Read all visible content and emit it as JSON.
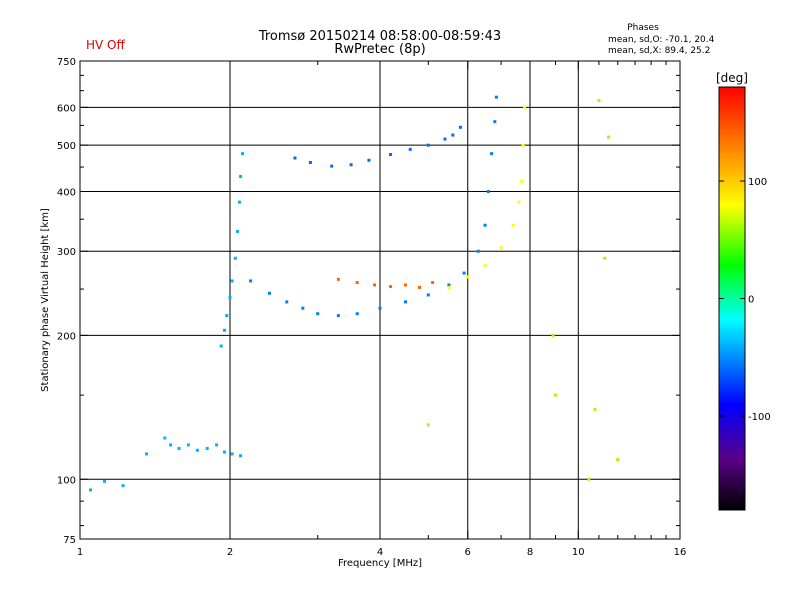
{
  "header": {
    "hv_status": "HV Off",
    "title_line1": "Tromsø 20150214 08:58:00-08:59:43",
    "title_line2": "RwPretec (8p)",
    "stats_title": "Phases",
    "stats_o": "mean, sd,O: -70.1, 20.4",
    "stats_x": "mean, sd,X:  89.4, 25.2"
  },
  "chart_data": {
    "type": "scatter",
    "title": "Tromsø 20150214 08:58:00-08:59:43",
    "subtitle": "RwPretec (8p)",
    "xlabel": "Frequency [MHz]",
    "ylabel": "Stationary phase Virtual Height [km]",
    "xscale": "log",
    "yscale": "log",
    "xlim": [
      1,
      16
    ],
    "ylim": [
      75,
      750
    ],
    "x_ticks": [
      1,
      2,
      4,
      6,
      8,
      10,
      16
    ],
    "x_minor_ticks": [
      3,
      5,
      7,
      9,
      11,
      12,
      13,
      14,
      15
    ],
    "y_ticks": [
      75,
      100,
      200,
      300,
      400,
      500,
      600,
      750
    ],
    "y_minor_ticks": [
      80,
      90,
      150,
      250,
      350,
      450,
      550,
      650,
      700
    ],
    "x_grid": [
      2,
      4,
      6,
      8,
      10
    ],
    "y_grid": [
      100,
      200,
      300,
      400,
      500,
      600
    ],
    "colorbar": {
      "label": "[deg]",
      "range": [
        -180,
        180
      ],
      "ticks": [
        100,
        0,
        -100
      ],
      "colors": [
        "#000000",
        "#5a0088",
        "#0000ff",
        "#00ffff",
        "#00ff00",
        "#ffff00",
        "#ff8000",
        "#ff0000"
      ]
    },
    "series": [
      {
        "name": "low E-layer echoes",
        "phase": -40,
        "points": [
          [
            1.05,
            95
          ],
          [
            1.12,
            99
          ],
          [
            1.22,
            97
          ],
          [
            1.36,
            113
          ],
          [
            1.48,
            122
          ],
          [
            1.52,
            118
          ],
          [
            1.58,
            116
          ],
          [
            1.65,
            118
          ],
          [
            1.72,
            115
          ],
          [
            1.8,
            116
          ],
          [
            1.88,
            118
          ],
          [
            1.95,
            114
          ],
          [
            2.02,
            113
          ],
          [
            2.1,
            112
          ]
        ]
      },
      {
        "name": "F-region vertical trace near 2 MHz",
        "phase": -40,
        "points": [
          [
            1.92,
            190
          ],
          [
            1.95,
            205
          ],
          [
            1.97,
            220
          ],
          [
            2.0,
            240
          ],
          [
            2.02,
            260
          ],
          [
            2.05,
            290
          ],
          [
            2.07,
            330
          ],
          [
            2.09,
            380
          ],
          [
            2.1,
            430
          ],
          [
            2.12,
            480
          ]
        ]
      },
      {
        "name": "O-mode F trace",
        "phase": -55,
        "points": [
          [
            2.2,
            260
          ],
          [
            2.4,
            245
          ],
          [
            2.6,
            235
          ],
          [
            2.8,
            228
          ],
          [
            3.0,
            222
          ],
          [
            3.3,
            220
          ],
          [
            3.6,
            222
          ],
          [
            4.0,
            228
          ],
          [
            4.5,
            235
          ],
          [
            5.0,
            243
          ],
          [
            5.5,
            255
          ],
          [
            5.9,
            270
          ],
          [
            6.3,
            300
          ],
          [
            6.5,
            340
          ],
          [
            6.6,
            400
          ],
          [
            6.7,
            480
          ],
          [
            6.8,
            560
          ],
          [
            6.85,
            630
          ]
        ]
      },
      {
        "name": "X-mode F trace",
        "phase": 80,
        "points": [
          [
            5.5,
            252
          ],
          [
            6.0,
            265
          ],
          [
            6.5,
            280
          ],
          [
            7.0,
            305
          ],
          [
            7.4,
            340
          ],
          [
            7.6,
            380
          ],
          [
            7.7,
            420
          ],
          [
            7.75,
            500
          ],
          [
            7.8,
            600
          ]
        ]
      },
      {
        "name": "orange band",
        "phase": 140,
        "points": [
          [
            3.3,
            262
          ],
          [
            3.6,
            258
          ],
          [
            3.9,
            255
          ],
          [
            4.2,
            253
          ],
          [
            4.5,
            255
          ],
          [
            4.8,
            252
          ],
          [
            5.1,
            258
          ]
        ]
      },
      {
        "name": "upper echo trace",
        "phase": -60,
        "points": [
          [
            2.7,
            470
          ],
          [
            2.9,
            460
          ],
          [
            3.2,
            452
          ],
          [
            3.5,
            455
          ],
          [
            3.8,
            465
          ],
          [
            4.2,
            478
          ],
          [
            4.6,
            490
          ],
          [
            5.0,
            500
          ],
          [
            5.4,
            515
          ],
          [
            5.6,
            525
          ],
          [
            5.8,
            545
          ]
        ]
      },
      {
        "name": "scattered points",
        "phase": 60,
        "points": [
          [
            5.0,
            130
          ],
          [
            8.9,
            200
          ],
          [
            9.0,
            150
          ],
          [
            10.8,
            140
          ],
          [
            11.0,
            620
          ],
          [
            11.5,
            520
          ],
          [
            10.5,
            100
          ],
          [
            12.0,
            110
          ],
          [
            11.3,
            290
          ]
        ]
      }
    ]
  }
}
